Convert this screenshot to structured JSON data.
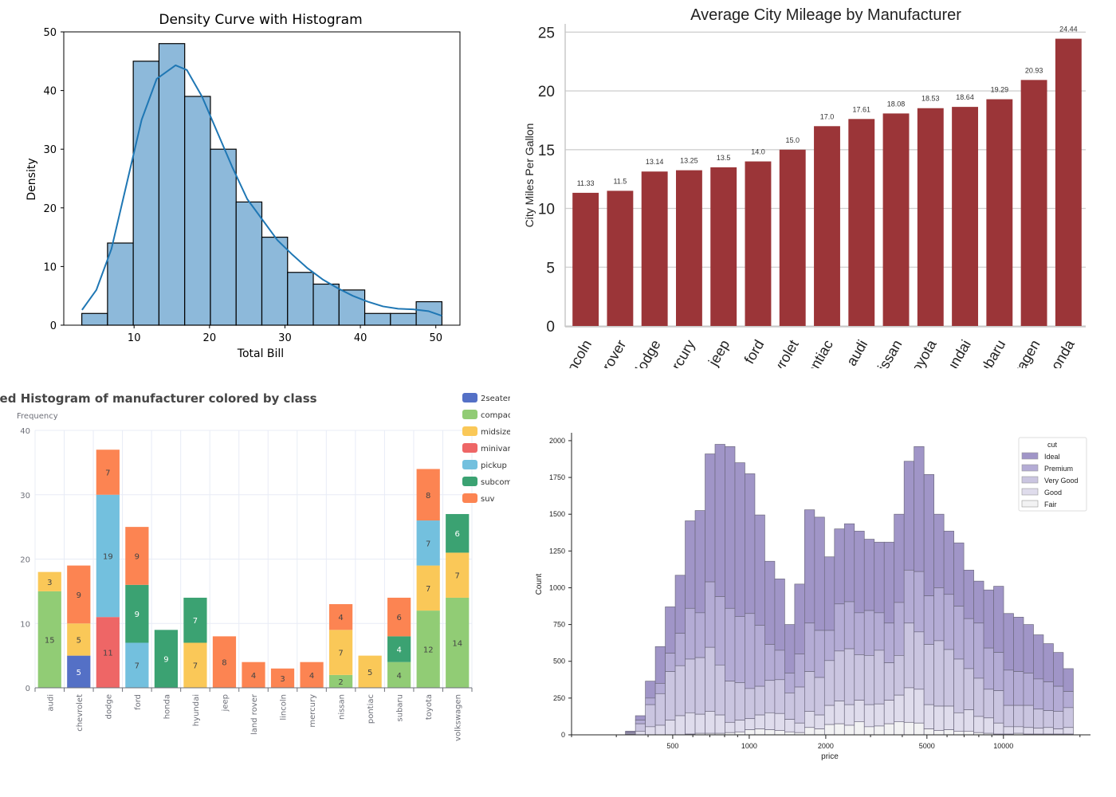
{
  "chart_data": [
    {
      "id": "density-histogram",
      "type": "bar",
      "title": "Density Curve with Histogram",
      "xlabel": "Total Bill",
      "ylabel": "Density",
      "bin_range": [
        3.07,
        50.81
      ],
      "bin_count": 14,
      "values": [
        2,
        14,
        45,
        48,
        39,
        30,
        21,
        15,
        9,
        7,
        6,
        2,
        2,
        4
      ],
      "kde": [
        [
          3.1,
          2.6
        ],
        [
          5,
          6
        ],
        [
          7,
          13
        ],
        [
          9,
          24
        ],
        [
          11,
          35
        ],
        [
          13,
          42
        ],
        [
          15.5,
          44.3
        ],
        [
          17,
          43.5
        ],
        [
          19,
          39
        ],
        [
          21,
          33
        ],
        [
          23,
          27
        ],
        [
          25,
          21.5
        ],
        [
          27,
          18
        ],
        [
          29,
          14.5
        ],
        [
          31,
          12
        ],
        [
          33,
          9.7
        ],
        [
          35,
          7.8
        ],
        [
          37,
          6.3
        ],
        [
          39,
          5
        ],
        [
          41,
          4
        ],
        [
          43,
          3.2
        ],
        [
          45,
          2.8
        ],
        [
          47,
          2.7
        ],
        [
          49,
          2.4
        ],
        [
          50.8,
          1.6
        ]
      ],
      "xticks": [
        "10",
        "20",
        "30",
        "40",
        "50"
      ],
      "yticks": [
        "0",
        "10",
        "20",
        "30",
        "40",
        "50"
      ],
      "xlim": [
        0.68,
        53.2
      ],
      "ylim": [
        0,
        50
      ],
      "colors": {
        "bar": "#8db9da",
        "edge": "#000000",
        "kde": "#1f77b4"
      }
    },
    {
      "id": "city-mileage",
      "type": "bar",
      "title": "Average City Mileage by Manufacturer",
      "xlabel": "",
      "ylabel": "City Miles Per Gallon",
      "categories": [
        "lincoln",
        "land rover",
        "dodge",
        "mercury",
        "jeep",
        "ford",
        "chevrolet",
        "pontiac",
        "audi",
        "nissan",
        "toyota",
        "hyundai",
        "subaru",
        "volkswagen",
        "honda"
      ],
      "values": [
        11.33,
        11.5,
        13.14,
        13.25,
        13.5,
        14.0,
        15.0,
        17.0,
        17.61,
        18.08,
        18.53,
        18.64,
        19.29,
        20.93,
        24.44
      ],
      "data_labels": [
        "11.33",
        "11.5",
        "13.14",
        "13.25",
        "13.5",
        "14.0",
        "15.0",
        "17.0",
        "17.61",
        "18.08",
        "18.53",
        "18.64",
        "19.29",
        "20.93",
        "24.44"
      ],
      "yticks": [
        "0",
        "5",
        "10",
        "15",
        "20",
        "25"
      ],
      "ylim": [
        0,
        25.7
      ],
      "grid": true,
      "colors": {
        "bar": "#9b3538"
      }
    },
    {
      "id": "stacked-manufacturer-class",
      "type": "bar",
      "stacked": true,
      "title": "Stacked Histogram of manufacturer colored by class",
      "ylabel": "Frequency",
      "categories": [
        "audi",
        "chevrolet",
        "dodge",
        "ford",
        "honda",
        "hyundai",
        "jeep",
        "land rover",
        "lincoln",
        "mercury",
        "nissan",
        "pontiac",
        "subaru",
        "toyota",
        "volkswagen"
      ],
      "series": [
        {
          "name": "2seater",
          "color": "#5470c6",
          "values": [
            0,
            5,
            0,
            0,
            0,
            0,
            0,
            0,
            0,
            0,
            0,
            0,
            0,
            0,
            0
          ]
        },
        {
          "name": "compact",
          "color": "#91cc75",
          "values": [
            15,
            0,
            0,
            0,
            0,
            0,
            0,
            0,
            0,
            0,
            2,
            0,
            4,
            12,
            14
          ]
        },
        {
          "name": "midsize",
          "color": "#fac858",
          "values": [
            3,
            5,
            0,
            0,
            0,
            7,
            0,
            0,
            0,
            0,
            7,
            5,
            0,
            7,
            7
          ]
        },
        {
          "name": "minivan",
          "color": "#ee6666",
          "values": [
            0,
            0,
            11,
            0,
            0,
            0,
            0,
            0,
            0,
            0,
            0,
            0,
            0,
            0,
            0
          ]
        },
        {
          "name": "pickup",
          "color": "#73c0de",
          "values": [
            0,
            0,
            19,
            7,
            0,
            0,
            0,
            0,
            0,
            0,
            0,
            0,
            0,
            7,
            0
          ]
        },
        {
          "name": "subcompact",
          "color": "#3ba272",
          "values": [
            0,
            0,
            0,
            9,
            9,
            7,
            0,
            0,
            0,
            0,
            0,
            0,
            4,
            0,
            6
          ]
        },
        {
          "name": "suv",
          "color": "#fc8452",
          "values": [
            0,
            9,
            7,
            9,
            0,
            0,
            8,
            4,
            3,
            4,
            4,
            0,
            6,
            8,
            0
          ]
        }
      ],
      "yticks": [
        "0",
        "10",
        "20",
        "30",
        "40"
      ],
      "ylim": [
        0,
        40
      ],
      "legend": "top-right",
      "grid": true
    },
    {
      "id": "diamond-price-by-cut",
      "type": "bar",
      "stacked": true,
      "title": "",
      "xlabel": "price",
      "ylabel": "Count",
      "x_scale": "log",
      "xlim": [
        200,
        22000
      ],
      "bin_range": [
        326,
        18823
      ],
      "xticks": [
        "500",
        "1000",
        "2000",
        "5000",
        "10000"
      ],
      "yticks": [
        "0",
        "250",
        "500",
        "750",
        "1000",
        "1250",
        "1500",
        "1750",
        "2000"
      ],
      "ylim": [
        0,
        2070
      ],
      "legend_title": "cut",
      "legend": "top-right",
      "series_order": [
        "Fair",
        "Good",
        "Very Good",
        "Premium",
        "Ideal"
      ],
      "legend_entries": [
        "Ideal",
        "Premium",
        "Very Good",
        "Good",
        "Fair"
      ],
      "colors": {
        "Ideal": "#a095c7",
        "Premium": "#b4acd5",
        "Very Good": "#cac5e0",
        "Good": "#dfdcec",
        "Fair": "#f2f2f3"
      },
      "cumulative_note": "each bin lists cumulative stack tops [Fair, Good, Very Good, Premium, Ideal]",
      "bins_cumulative": [
        [
          0,
          5,
          12,
          20,
          25
        ],
        [
          0,
          25,
          75,
          100,
          130
        ],
        [
          0,
          55,
          205,
          250,
          365
        ],
        [
          0,
          65,
          280,
          350,
          600
        ],
        [
          0,
          100,
          430,
          555,
          870
        ],
        [
          0,
          130,
          470,
          690,
          1085
        ],
        [
          5,
          150,
          515,
          860,
          1455
        ],
        [
          10,
          140,
          525,
          830,
          1525
        ],
        [
          10,
          160,
          595,
          1040,
          1910
        ],
        [
          10,
          135,
          475,
          940,
          1975
        ],
        [
          15,
          85,
          365,
          860,
          1960
        ],
        [
          20,
          100,
          355,
          805,
          1850
        ],
        [
          35,
          110,
          315,
          825,
          1775
        ],
        [
          40,
          135,
          330,
          745,
          1495
        ],
        [
          35,
          150,
          370,
          615,
          1180
        ],
        [
          30,
          145,
          375,
          575,
          1060
        ],
        [
          20,
          105,
          285,
          420,
          750
        ],
        [
          15,
          80,
          325,
          550,
          1025
        ],
        [
          50,
          160,
          430,
          760,
          1530
        ],
        [
          40,
          135,
          390,
          710,
          1480
        ],
        [
          70,
          200,
          505,
          710,
          1210
        ],
        [
          75,
          230,
          570,
          890,
          1400
        ],
        [
          65,
          205,
          585,
          905,
          1435
        ],
        [
          90,
          235,
          545,
          830,
          1385
        ],
        [
          55,
          205,
          540,
          845,
          1330
        ],
        [
          60,
          210,
          575,
          830,
          1310
        ],
        [
          75,
          235,
          490,
          760,
          1310
        ],
        [
          90,
          270,
          540,
          900,
          1500
        ],
        [
          85,
          320,
          760,
          1120,
          1860
        ],
        [
          80,
          310,
          700,
          1110,
          1960
        ],
        [
          40,
          205,
          615,
          945,
          1770
        ],
        [
          30,
          195,
          640,
          1000,
          1500
        ],
        [
          35,
          195,
          580,
          955,
          1385
        ],
        [
          25,
          150,
          515,
          875,
          1305
        ],
        [
          25,
          170,
          450,
          790,
          1120
        ],
        [
          15,
          125,
          385,
          760,
          1045
        ],
        [
          10,
          115,
          310,
          590,
          985
        ],
        [
          5,
          80,
          300,
          560,
          1010
        ],
        [
          5,
          55,
          200,
          440,
          825
        ],
        [
          10,
          55,
          200,
          430,
          800
        ],
        [
          5,
          50,
          200,
          420,
          750
        ],
        [
          5,
          45,
          175,
          380,
          680
        ],
        [
          5,
          50,
          165,
          360,
          620
        ],
        [
          5,
          40,
          160,
          330,
          560
        ],
        [
          5,
          50,
          185,
          295,
          450
        ]
      ]
    }
  ]
}
